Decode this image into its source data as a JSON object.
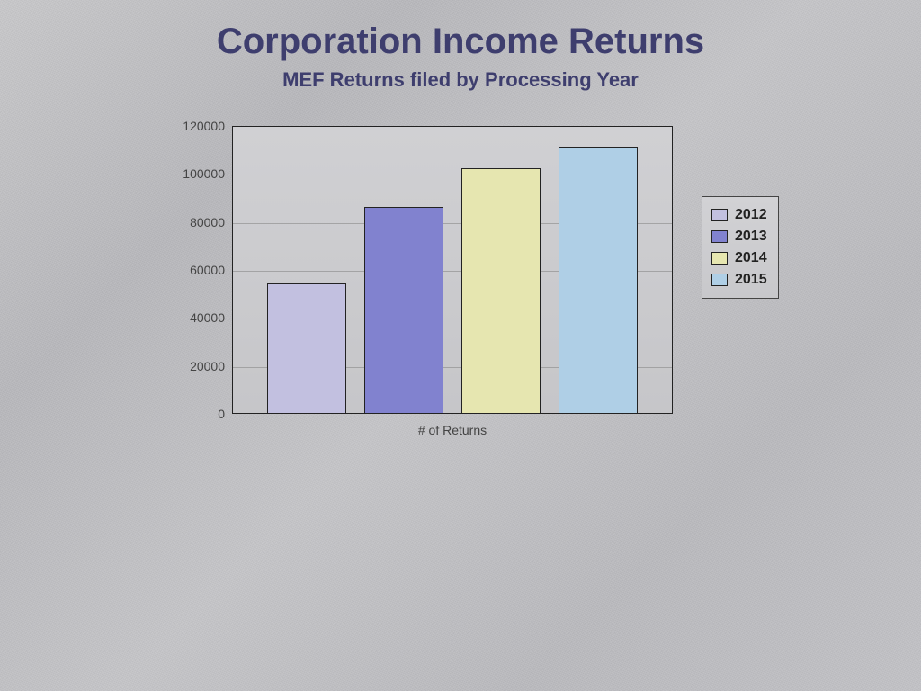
{
  "title": "Corporation Income Returns",
  "subtitle": "MEF Returns filed by Processing Year",
  "title_color": "#3e3e6e",
  "title_fontsize": 40,
  "subtitle_fontsize": 22,
  "background_style": "brushed-metal",
  "chart": {
    "type": "bar",
    "xlabel": "# of Returns",
    "ylabel": "",
    "ylim": [
      0,
      120000
    ],
    "ytick_step": 20000,
    "yticks": [
      0,
      20000,
      40000,
      60000,
      80000,
      100000,
      120000
    ],
    "grid": true,
    "grid_color": "#888888",
    "plot_bg": "#cbcbce",
    "border_color": "#222222",
    "label_fontsize": 14,
    "label_color": "#444444",
    "bar_width": 0.72,
    "series": [
      {
        "label": "2012",
        "value": 54000,
        "color": "#c2c0e0"
      },
      {
        "label": "2013",
        "value": 86000,
        "color": "#8182cf"
      },
      {
        "label": "2014",
        "value": 102000,
        "color": "#e6e6b0"
      },
      {
        "label": "2015",
        "value": 111000,
        "color": "#afcfe6"
      }
    ],
    "legend": {
      "position": "right",
      "border_color": "#444444",
      "bg": "#cdcdd0",
      "fontsize": 16,
      "font_weight": "bold"
    }
  }
}
